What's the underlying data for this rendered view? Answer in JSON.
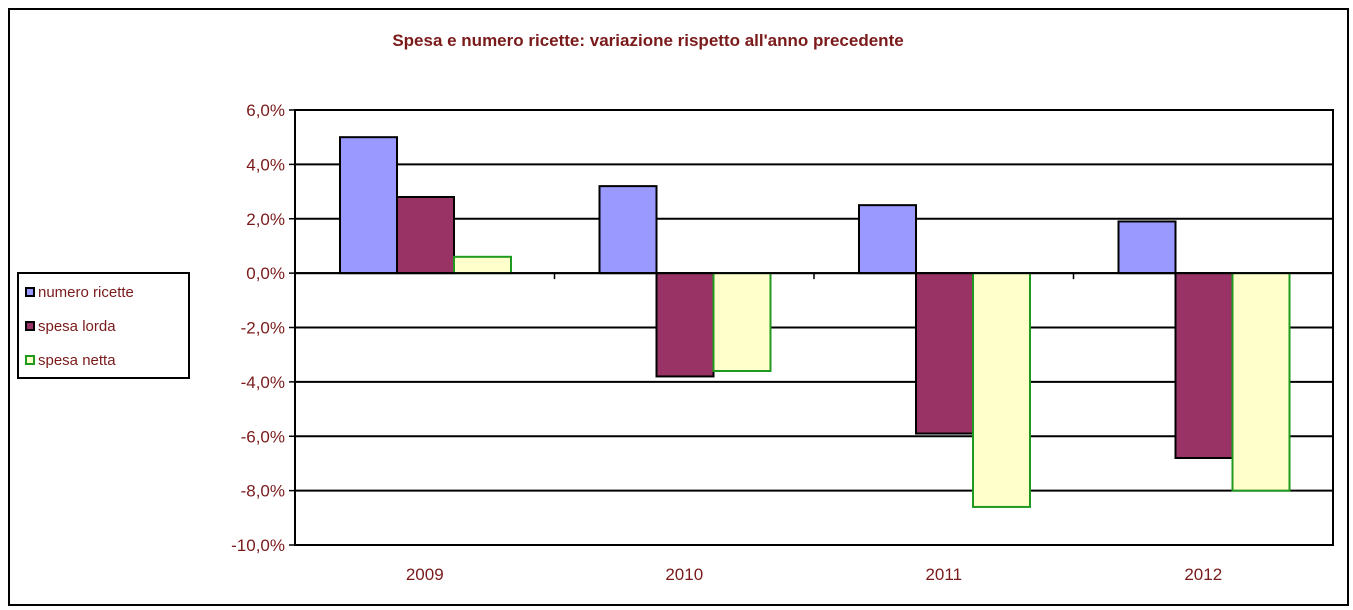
{
  "chart_data": {
    "type": "bar",
    "title": "Spesa e numero ricette: variazione rispetto all'anno precedente",
    "xlabel": "",
    "ylabel": "",
    "categories": [
      "2009",
      "2010",
      "2011",
      "2012"
    ],
    "ylim": [
      -10,
      6
    ],
    "yticks": [
      6,
      4,
      2,
      0,
      -2,
      -4,
      -6,
      -8,
      -10
    ],
    "ytick_labels": [
      "6,0%",
      "4,0%",
      "2,0%",
      "0,0%",
      "-2,0%",
      "-4,0%",
      "-6,0%",
      "-8,0%",
      "-10,0%"
    ],
    "grid": true,
    "legend_position": "left",
    "series": [
      {
        "name": "numero ricette",
        "values": [
          5.0,
          3.2,
          2.5,
          1.9
        ],
        "fill": "#9999ff",
        "stroke": "#000000"
      },
      {
        "name": "spesa lorda",
        "values": [
          2.8,
          -3.8,
          -5.9,
          -6.8
        ],
        "fill": "#993366",
        "stroke": "#000000"
      },
      {
        "name": "spesa netta",
        "values": [
          0.6,
          -3.6,
          -8.6,
          -8.0
        ],
        "fill": "#ffffcc",
        "stroke": "#1f9a1f"
      }
    ]
  }
}
